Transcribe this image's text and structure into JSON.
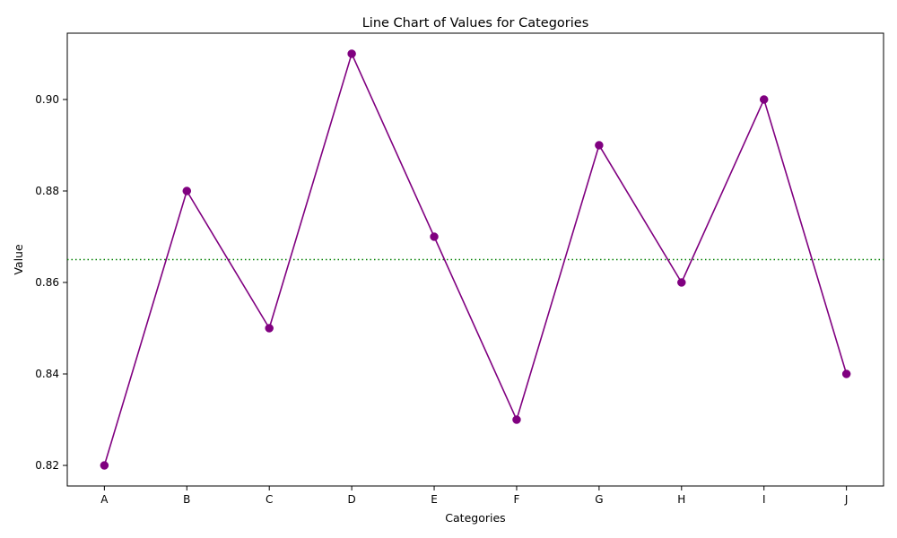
{
  "chart_data": {
    "type": "line",
    "title": "Line Chart of Values for Categories",
    "xlabel": "Categories",
    "ylabel": "Value",
    "categories": [
      "A",
      "B",
      "C",
      "D",
      "E",
      "F",
      "G",
      "H",
      "I",
      "J"
    ],
    "series": [
      {
        "values": [
          0.82,
          0.88,
          0.85,
          0.91,
          0.87,
          0.83,
          0.89,
          0.86,
          0.9,
          0.84
        ],
        "color": "#800080",
        "marker": "circle"
      }
    ],
    "reference_line": {
      "y": 0.865,
      "color": "#008000",
      "style": "dotted"
    },
    "ylim": [
      0.8155,
      0.9145
    ],
    "yticks": [
      0.82,
      0.84,
      0.86,
      0.88,
      0.9
    ],
    "ytick_labels": [
      "0.82",
      "0.84",
      "0.86",
      "0.88",
      "0.90"
    ],
    "grid": false,
    "legend": "none"
  }
}
